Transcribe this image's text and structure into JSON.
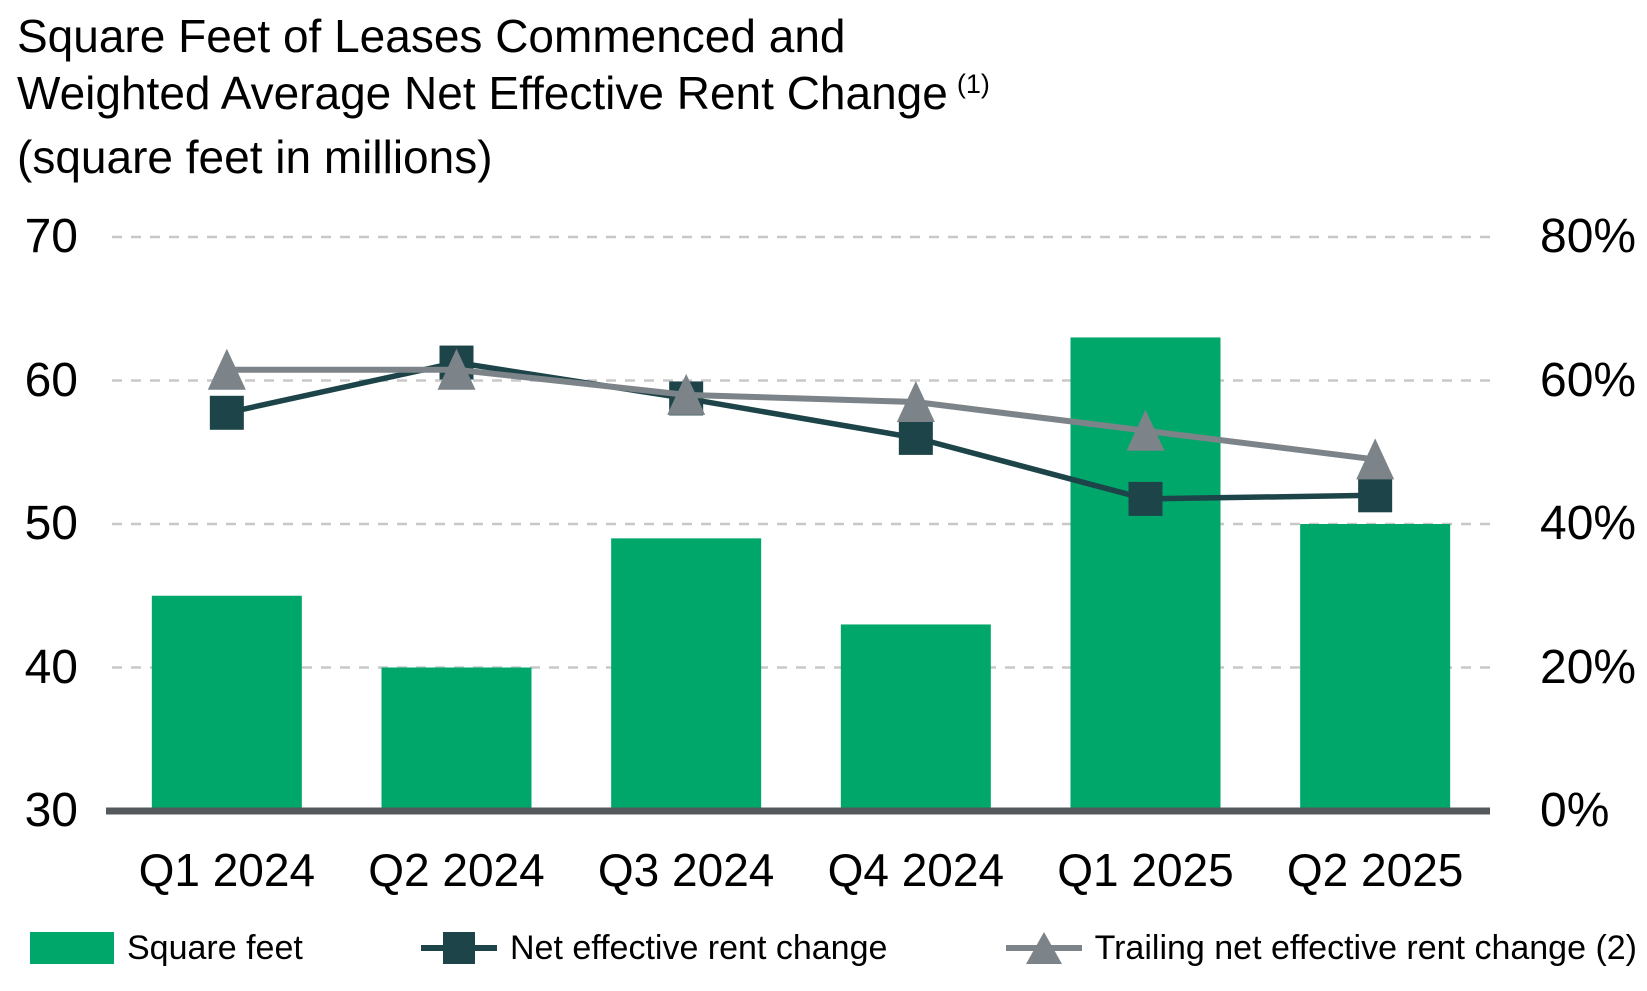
{
  "header": {
    "title_line1": "Square Feet of Leases Commenced and",
    "title_line2": "Weighted Average Net Effective Rent Change",
    "title_superscript": "(1)",
    "subtitle": "(square feet in millions)"
  },
  "axes": {
    "left": {
      "ticks": [
        "70",
        "60",
        "50",
        "40",
        "30"
      ]
    },
    "right": {
      "ticks": [
        "80%",
        "60%",
        "40%",
        "20%",
        "0%"
      ]
    }
  },
  "legend": {
    "items": [
      {
        "label": "Square feet",
        "marker": "bar-swatch"
      },
      {
        "label": "Net effective rent change",
        "marker": "square"
      },
      {
        "label": "Trailing net effective rent change (2)",
        "marker": "triangle"
      }
    ]
  },
  "colors": {
    "bar": "#00a76a",
    "net_line": "#1d4448",
    "trailing_line": "#7c8489",
    "axis_line": "#56595c",
    "gridline": "#c8c8c8",
    "text": "#000000"
  },
  "chart_data": {
    "type": "bar",
    "title": "Square Feet of Leases Commenced and Weighted Average Net Effective Rent Change (1)",
    "subtitle": "(square feet in millions)",
    "categories": [
      "Q1 2024",
      "Q2 2024",
      "Q3 2024",
      "Q4 2024",
      "Q1 2025",
      "Q2 2025"
    ],
    "series": [
      {
        "name": "Square feet",
        "type": "bar",
        "axis": "left",
        "values": [
          45,
          40,
          49,
          43,
          63,
          50
        ]
      },
      {
        "name": "Net effective rent change",
        "type": "line",
        "marker": "square",
        "axis": "right",
        "values": [
          55.5,
          62.5,
          57.5,
          52,
          43.5,
          44
        ]
      },
      {
        "name": "Trailing net effective rent change (2)",
        "type": "line",
        "marker": "triangle",
        "axis": "right",
        "values": [
          61.5,
          61.5,
          58,
          57,
          53,
          49
        ]
      }
    ],
    "left_axis": {
      "label": "square feet in millions",
      "range": [
        30,
        70
      ],
      "ticks": [
        70,
        60,
        50,
        40,
        30
      ]
    },
    "right_axis": {
      "label": "rent change",
      "unit": "%",
      "range": [
        0,
        80
      ],
      "ticks": [
        80,
        60,
        40,
        20,
        0
      ]
    },
    "grid": "horizontal-dashed",
    "legend_position": "bottom"
  }
}
